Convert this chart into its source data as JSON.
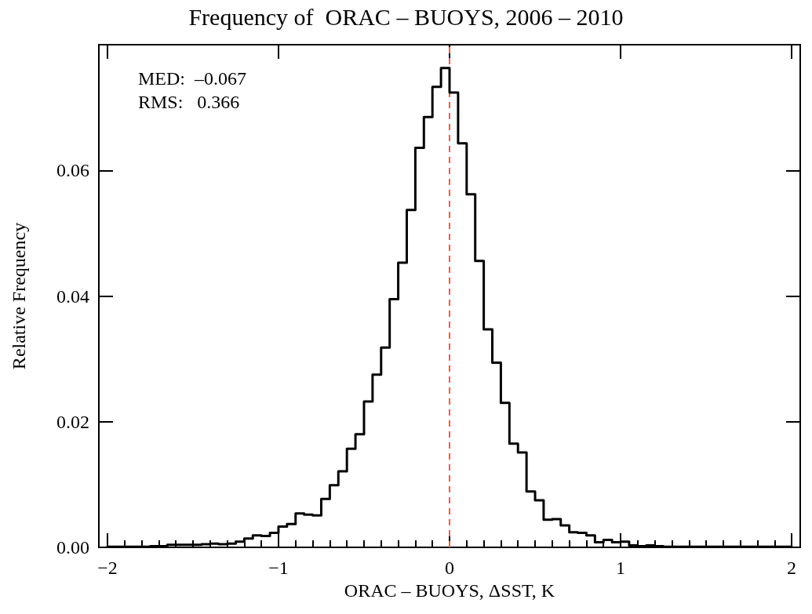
{
  "chart_data": {
    "type": "histogram",
    "title": "Frequency of  ORAC – BUOYS, 2006 – 2010",
    "xlabel": "ORAC – BUOYS, ΔSST, K",
    "ylabel": "Relative Frequency",
    "bins": [
      -2.0,
      -1.95,
      -1.9,
      -1.85,
      -1.8,
      -1.75,
      -1.7,
      -1.65,
      -1.6,
      -1.55,
      -1.5,
      -1.45,
      -1.4,
      -1.35,
      -1.3,
      -1.25,
      -1.2,
      -1.15,
      -1.1,
      -1.05,
      -1.0,
      -0.95,
      -0.9,
      -0.85,
      -0.8,
      -0.75,
      -0.7,
      -0.65,
      -0.6,
      -0.55,
      -0.5,
      -0.45,
      -0.4,
      -0.35,
      -0.3,
      -0.25,
      -0.2,
      -0.15,
      -0.1,
      -0.05,
      0.0,
      0.05,
      0.1,
      0.15,
      0.2,
      0.25,
      0.3,
      0.35,
      0.4,
      0.45,
      0.5,
      0.55,
      0.6,
      0.65,
      0.7,
      0.75,
      0.8,
      0.85,
      0.9,
      0.95,
      1.0,
      1.05,
      1.1,
      1.15,
      1.2,
      1.25,
      1.3,
      1.35,
      1.4,
      1.45,
      1.5,
      1.55,
      1.6,
      1.65,
      1.7,
      1.75,
      1.8,
      1.85,
      1.9,
      1.95,
      2.0
    ],
    "values": [
      0.0001,
      0.0001,
      0.0001,
      0.0001,
      0.0001,
      0.0002,
      0.0002,
      0.0004,
      0.0004,
      0.0004,
      0.0004,
      0.0005,
      0.0006,
      0.0005,
      0.0006,
      0.0009,
      0.0014,
      0.0019,
      0.0018,
      0.0023,
      0.0033,
      0.0037,
      0.0054,
      0.0052,
      0.0051,
      0.0077,
      0.0099,
      0.0121,
      0.0157,
      0.018,
      0.0232,
      0.0275,
      0.0318,
      0.0395,
      0.0453,
      0.0537,
      0.0636,
      0.0685,
      0.0733,
      0.0763,
      0.0724,
      0.0643,
      0.0562,
      0.0456,
      0.0347,
      0.0294,
      0.023,
      0.0165,
      0.0151,
      0.0089,
      0.0075,
      0.0044,
      0.0045,
      0.0035,
      0.0024,
      0.0023,
      0.0019,
      0.0008,
      0.0012,
      0.0008,
      0.0009,
      0.0003,
      0.0002,
      0.0003,
      0.0002,
      0.0001,
      0.0001,
      0.0001,
      0.0001,
      0.0001,
      0.0001,
      0.0001,
      0.0001,
      0.0001,
      0.0001,
      0.0001,
      0.0001,
      0.0001,
      0.0001,
      0.0001
    ],
    "color": "#000000",
    "xlim": [
      -2.05,
      2.05
    ],
    "xticks": [
      {
        "value": -2,
        "label": "−2"
      },
      {
        "value": -1.9,
        "label": null
      },
      {
        "value": -1.8,
        "label": null
      },
      {
        "value": -1.7,
        "label": null
      },
      {
        "value": -1.6,
        "label": null
      },
      {
        "value": -1.5,
        "label": null
      },
      {
        "value": -1.4,
        "label": null
      },
      {
        "value": -1.3,
        "label": null
      },
      {
        "value": -1.2,
        "label": null
      },
      {
        "value": -1.1,
        "label": null
      },
      {
        "value": -1,
        "label": "−1"
      },
      {
        "value": -0.9,
        "label": null
      },
      {
        "value": -0.8,
        "label": null
      },
      {
        "value": -0.7,
        "label": null
      },
      {
        "value": -0.6,
        "label": null
      },
      {
        "value": -0.5,
        "label": null
      },
      {
        "value": -0.4,
        "label": null
      },
      {
        "value": -0.3,
        "label": null
      },
      {
        "value": -0.2,
        "label": null
      },
      {
        "value": -0.1,
        "label": null
      },
      0,
      {
        "value": 0.1,
        "label": null
      },
      {
        "value": 0.2,
        "label": null
      },
      {
        "value": 0.3,
        "label": null
      },
      {
        "value": 0.4,
        "label": null
      },
      {
        "value": 0.5,
        "label": null
      },
      {
        "value": 0.6,
        "label": null
      },
      {
        "value": 0.7,
        "label": null
      },
      {
        "value": 0.8,
        "label": null
      },
      {
        "value": 0.9,
        "label": null
      },
      1,
      {
        "value": 1.1,
        "label": null
      },
      {
        "value": 1.2,
        "label": null
      },
      {
        "value": 1.3,
        "label": null
      },
      {
        "value": 1.4,
        "label": null
      },
      {
        "value": 1.5,
        "label": null
      },
      {
        "value": 1.6,
        "label": null
      },
      {
        "value": 1.7,
        "label": null
      },
      {
        "value": 1.8,
        "label": null
      },
      {
        "value": 1.9,
        "label": null
      },
      2
    ],
    "ylim": [
      0,
      0.08
    ],
    "yticks": [
      {
        "value": 0,
        "label": "0.00"
      },
      {
        "value": 0.02,
        "label": "0.02"
      },
      {
        "value": 0.04,
        "label": "0.04"
      },
      {
        "value": 0.06,
        "label": "0.06"
      }
    ],
    "grid": false,
    "ref_lines": [
      {
        "axis": "x",
        "value": 0,
        "color": "#ff5555",
        "line_style": "dashed"
      }
    ],
    "annotations": [
      "MED:  –0.067",
      "RMS:   0.366"
    ]
  }
}
